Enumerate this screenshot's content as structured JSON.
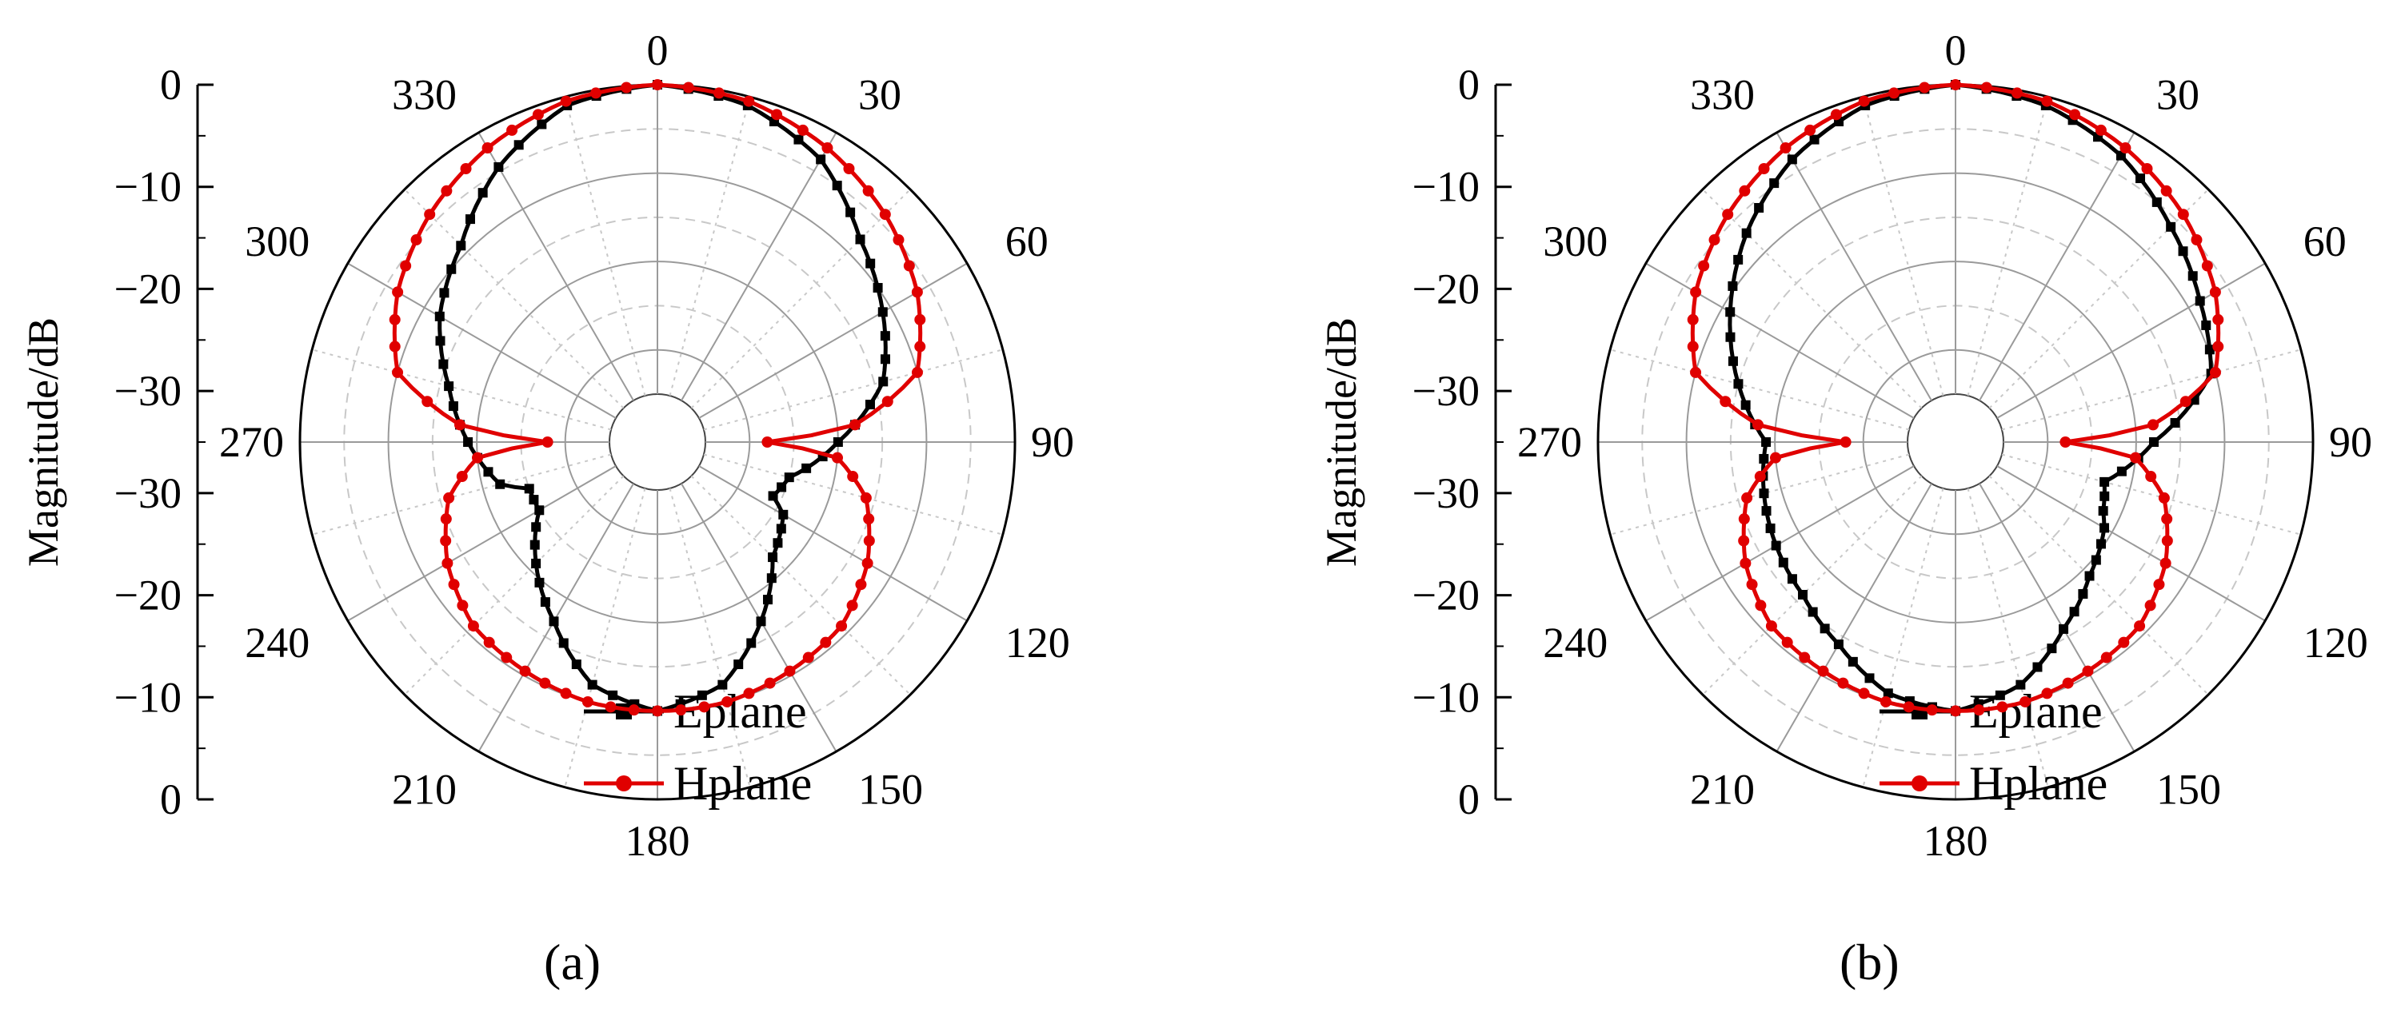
{
  "chart_data": [
    {
      "type": "polar-line",
      "panel_label": "b",
      "panel_label_display": "(a)",
      "ylabel": "Magnitude/dB",
      "radial_ticks": [
        "0",
        "−10",
        "−20",
        "−30",
        "−30",
        "−20",
        "−10",
        "0"
      ],
      "angle_labels": [
        "0",
        "30",
        "60",
        "90",
        "120",
        "150",
        "180",
        "210",
        "240",
        "270",
        "300",
        "330"
      ],
      "radial_range": [
        -35,
        0
      ],
      "grid": true,
      "legend_position": "bottom-center",
      "series": [
        {
          "name": "Eplane",
          "color": "#000000",
          "marker": "square",
          "points": [
            [
              0,
              0
            ],
            [
              15,
              -1
            ],
            [
              30,
              -3.5
            ],
            [
              45,
              -8
            ],
            [
              60,
              -11
            ],
            [
              75,
              -14
            ],
            [
              90,
              -20
            ],
            [
              105,
              -25
            ],
            [
              115,
              -26
            ],
            [
              120,
              -24
            ],
            [
              135,
              -22
            ],
            [
              150,
              -17
            ],
            [
              165,
              -12
            ],
            [
              180,
              -10
            ],
            [
              195,
              -12
            ],
            [
              210,
              -17
            ],
            [
              225,
              -21
            ],
            [
              240,
              -25
            ],
            [
              250,
              -25
            ],
            [
              255,
              -22
            ],
            [
              270,
              -19
            ],
            [
              285,
              -16
            ],
            [
              300,
              -12
            ],
            [
              315,
              -9
            ],
            [
              330,
              -4.5
            ],
            [
              345,
              -1
            ]
          ]
        },
        {
          "name": "Hplane",
          "color": "#e00000",
          "marker": "circle",
          "points": [
            [
              0,
              0
            ],
            [
              15,
              -0.5
            ],
            [
              30,
              -2
            ],
            [
              45,
              -4
            ],
            [
              60,
              -6.5
            ],
            [
              75,
              -10
            ],
            [
              85,
              -18
            ],
            [
              90,
              -28
            ],
            [
              95,
              -20
            ],
            [
              105,
              -16
            ],
            [
              120,
              -13
            ],
            [
              135,
              -11
            ],
            [
              150,
              -10.5
            ],
            [
              165,
              -10
            ],
            [
              180,
              -10
            ],
            [
              195,
              -10
            ],
            [
              210,
              -10.5
            ],
            [
              225,
              -11
            ],
            [
              240,
              -13
            ],
            [
              255,
              -16
            ],
            [
              265,
              -20
            ],
            [
              270,
              -28
            ],
            [
              275,
              -18
            ],
            [
              285,
              -10
            ],
            [
              300,
              -6.5
            ],
            [
              315,
              -4
            ],
            [
              330,
              -2
            ],
            [
              345,
              -0.5
            ]
          ]
        }
      ]
    },
    {
      "type": "polar-line",
      "panel_label": "b",
      "panel_label_display": "(b)",
      "ylabel": "Magnitude/dB",
      "radial_ticks": [
        "0",
        "−10",
        "−20",
        "−30",
        "−30",
        "−20",
        "−10",
        "0"
      ],
      "angle_labels": [
        "0",
        "30",
        "60",
        "90",
        "120",
        "150",
        "180",
        "210",
        "240",
        "270",
        "300",
        "330"
      ],
      "radial_range": [
        -35,
        0
      ],
      "grid": true,
      "legend_position": "bottom-center",
      "series": [
        {
          "name": "Eplane",
          "color": "#000000",
          "marker": "square",
          "points": [
            [
              0,
              0
            ],
            [
              15,
              -1
            ],
            [
              30,
              -3
            ],
            [
              45,
              -6
            ],
            [
              60,
              -8.5
            ],
            [
              75,
              -10.5
            ],
            [
              90,
              -18
            ],
            [
              105,
              -23
            ],
            [
              115,
              -22
            ],
            [
              120,
              -21
            ],
            [
              135,
              -19
            ],
            [
              150,
              -16
            ],
            [
              165,
              -12
            ],
            [
              180,
              -10
            ],
            [
              195,
              -11
            ],
            [
              210,
              -14
            ],
            [
              225,
              -16
            ],
            [
              240,
              -17
            ],
            [
              255,
              -18
            ],
            [
              270,
              -19
            ],
            [
              285,
              -15
            ],
            [
              300,
              -11
            ],
            [
              315,
              -7
            ],
            [
              330,
              -3.5
            ],
            [
              345,
              -1
            ]
          ]
        },
        {
          "name": "Hplane",
          "color": "#e00000",
          "marker": "circle",
          "points": [
            [
              0,
              0
            ],
            [
              15,
              -0.5
            ],
            [
              30,
              -2
            ],
            [
              45,
              -4
            ],
            [
              60,
              -6.5
            ],
            [
              75,
              -10
            ],
            [
              85,
              -18
            ],
            [
              90,
              -28
            ],
            [
              95,
              -20
            ],
            [
              105,
              -16
            ],
            [
              120,
              -13
            ],
            [
              135,
              -11
            ],
            [
              150,
              -10.5
            ],
            [
              165,
              -10
            ],
            [
              180,
              -10
            ],
            [
              195,
              -10
            ],
            [
              210,
              -10.5
            ],
            [
              225,
              -11
            ],
            [
              240,
              -13
            ],
            [
              255,
              -16
            ],
            [
              265,
              -20
            ],
            [
              270,
              -28
            ],
            [
              275,
              -18
            ],
            [
              285,
              -10
            ],
            [
              300,
              -6.5
            ],
            [
              315,
              -4
            ],
            [
              330,
              -2
            ],
            [
              345,
              -0.5
            ]
          ]
        }
      ]
    }
  ]
}
